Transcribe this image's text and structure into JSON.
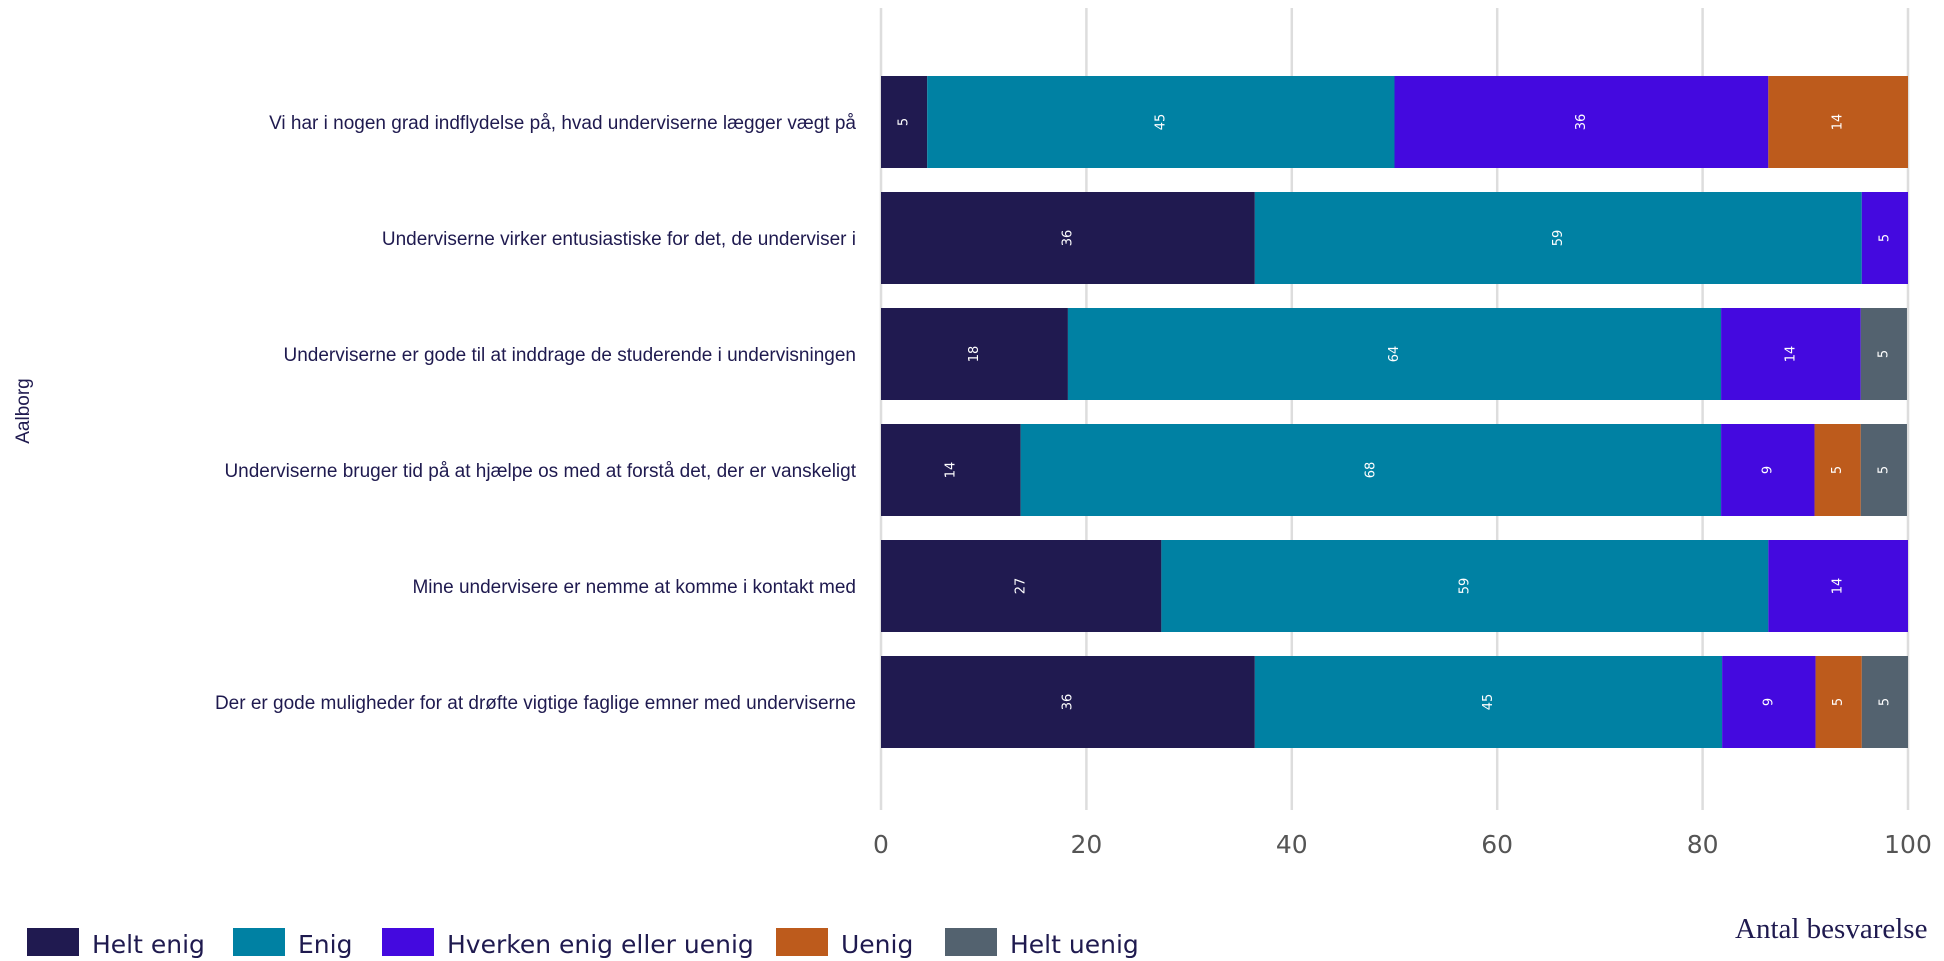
{
  "chart_data": {
    "type": "bar",
    "orientation": "horizontal",
    "stacked": true,
    "facet_label": "Aalborg",
    "categories": [
      "Vi har i nogen grad indflydelse på, hvad underviserne lægger vægt på",
      "Underviserne virker entusiastiske for det, de underviser i",
      "Underviserne er gode til at inddrage de studerende i undervisningen",
      "Underviserne bruger tid på at hjælpe os med at forstå det, der er vanskeligt",
      "Mine undervisere er nemme at komme i kontakt med",
      "Der er gode muligheder for at drøfte vigtige faglige emner med underviserne"
    ],
    "series": [
      {
        "name": "Helt enig",
        "color": "#201a50",
        "values": [
          4.5,
          36.4,
          18.2,
          13.6,
          27.3,
          36.4
        ],
        "labels": [
          "5",
          "36",
          "18",
          "14",
          "27",
          "36"
        ]
      },
      {
        "name": "Enig",
        "color": "#0081a3",
        "values": [
          45.5,
          59.1,
          63.6,
          68.2,
          59.1,
          45.5
        ],
        "labels": [
          "45",
          "59",
          "64",
          "68",
          "59",
          "45"
        ]
      },
      {
        "name": "Hverken enig eller uenig",
        "color": "#4409df",
        "values": [
          36.4,
          4.5,
          13.6,
          9.1,
          13.6,
          9.1
        ],
        "labels": [
          "36",
          "5",
          "14",
          "9",
          "14",
          "9"
        ]
      },
      {
        "name": "Uenig",
        "color": "#bd5b1c",
        "values": [
          13.6,
          0,
          0,
          4.5,
          0,
          4.5
        ],
        "labels": [
          "14",
          "",
          "",
          "5",
          "",
          "5"
        ]
      },
      {
        "name": "Helt uenig",
        "color": "#53626f",
        "values": [
          0,
          0,
          4.5,
          4.5,
          0,
          4.5
        ],
        "labels": [
          "",
          "",
          "5",
          "5",
          "",
          "5"
        ]
      }
    ],
    "xlim": [
      0,
      100
    ],
    "xticks": [
      "0",
      "20",
      "40",
      "60",
      "80",
      "100"
    ],
    "xlabel": "Antal besvarelse",
    "legend_position": "bottom",
    "grid": true
  }
}
